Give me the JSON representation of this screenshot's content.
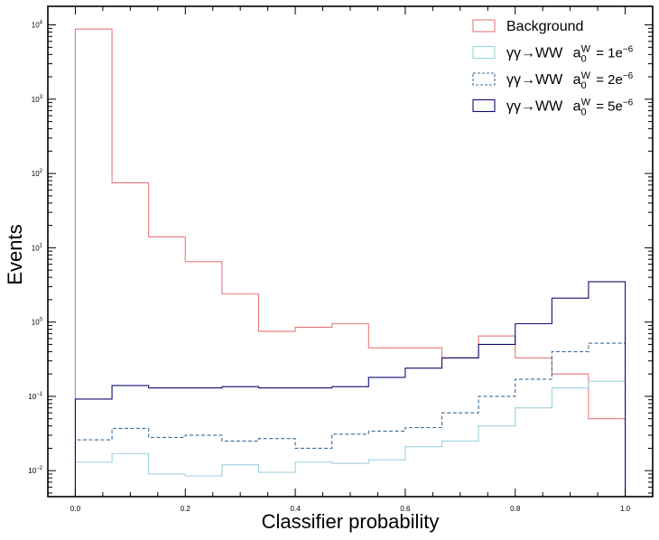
{
  "chart_data": {
    "type": "step",
    "xlabel": "Classifier probability",
    "ylabel": "Events",
    "xlim": [
      -0.05,
      1.05
    ],
    "ylim_log10": [
      -2.35,
      4.25
    ],
    "yscale": "log",
    "bin_edges": [
      0.0,
      0.0667,
      0.1333,
      0.2,
      0.2667,
      0.3333,
      0.4,
      0.4667,
      0.5333,
      0.6,
      0.6667,
      0.7333,
      0.8,
      0.8667,
      0.9333,
      1.0
    ],
    "x_ticks": [
      {
        "value": 0.0,
        "label": "0.0"
      },
      {
        "value": 0.2,
        "label": "0.2"
      },
      {
        "value": 0.4,
        "label": "0.4"
      },
      {
        "value": 0.6,
        "label": "0.6"
      },
      {
        "value": 0.8,
        "label": "0.8"
      },
      {
        "value": 1.0,
        "label": "1.0"
      }
    ],
    "y_ticks": [
      {
        "exp": -2,
        "base": "10",
        "power": "−2"
      },
      {
        "exp": -1,
        "base": "10",
        "power": "−1"
      },
      {
        "exp": 0,
        "base": "10",
        "power": "0"
      },
      {
        "exp": 1,
        "base": "10",
        "power": "1"
      },
      {
        "exp": 2,
        "base": "10",
        "power": "2"
      },
      {
        "exp": 3,
        "base": "10",
        "power": "3"
      },
      {
        "exp": 4,
        "base": "10",
        "power": "4"
      }
    ],
    "legend_placement": "top-right",
    "series": [
      {
        "name": "Background",
        "color": "#e8787a",
        "dashed": false,
        "values": [
          8800,
          75,
          14,
          6.5,
          2.4,
          0.75,
          0.85,
          0.95,
          0.45,
          0.45,
          0.33,
          0.65,
          0.33,
          0.2,
          0.05
        ]
      },
      {
        "name": "γγ→WW",
        "coupling": "1e",
        "coupling_exp": "−6",
        "color": "#9dd2dc",
        "dashed": false,
        "values": [
          0.013,
          0.017,
          0.009,
          0.0085,
          0.012,
          0.0095,
          0.013,
          0.0125,
          0.014,
          0.021,
          0.025,
          0.04,
          0.07,
          0.13,
          0.16
        ]
      },
      {
        "name": "γγ→WW",
        "coupling": "2e",
        "coupling_exp": "−6",
        "color": "#3a6c9a",
        "dashed": true,
        "values": [
          0.026,
          0.037,
          0.028,
          0.03,
          0.025,
          0.027,
          0.02,
          0.031,
          0.034,
          0.038,
          0.06,
          0.1,
          0.17,
          0.4,
          0.52
        ]
      },
      {
        "name": "γγ→WW",
        "coupling": "5e",
        "coupling_exp": "−6",
        "color": "#0e0e70",
        "dashed": false,
        "values": [
          0.092,
          0.14,
          0.13,
          0.13,
          0.135,
          0.13,
          0.13,
          0.135,
          0.18,
          0.24,
          0.33,
          0.5,
          0.95,
          2.1,
          3.5
        ]
      }
    ],
    "legend_coupling_symbol": "a",
    "legend_coupling_sub": "0",
    "legend_coupling_sup": "W"
  }
}
